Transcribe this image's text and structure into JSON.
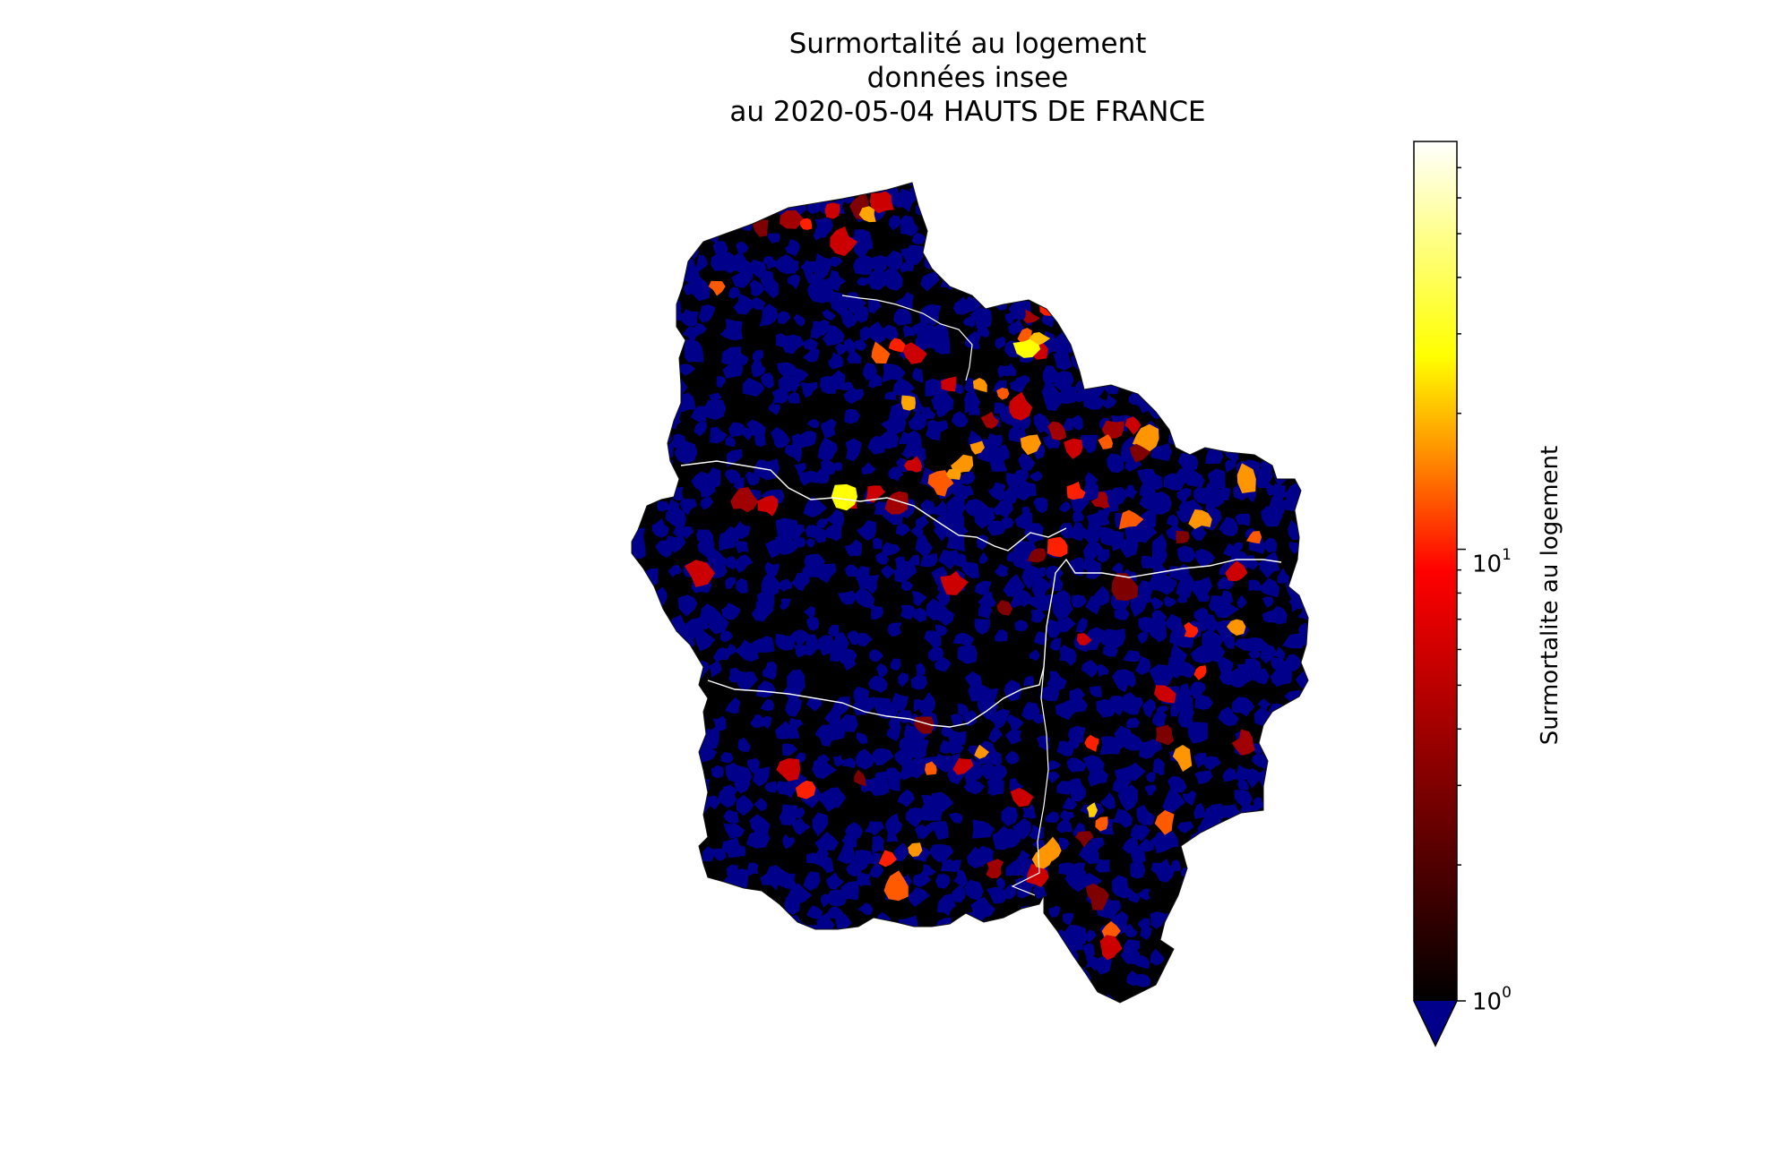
{
  "title": {
    "line1": "Surmortalité au logement",
    "line2": "données insee",
    "line3": "au 2020-05-04 HAUTS DE FRANCE"
  },
  "map": {
    "region": "HAUTS DE FRANCE",
    "date": "2020-05-04",
    "base_color": "#000000",
    "below_min_color": "#00008b",
    "boundary_color": "#ffffff"
  },
  "colorbar": {
    "label": "Surmortalite au logement",
    "scale": "log",
    "colormap": "afmhot",
    "vmin": 1,
    "extend": "min",
    "under_color": "#00008b",
    "ticks": [
      {
        "base": "10",
        "exp": "0",
        "value": 1
      },
      {
        "base": "10",
        "exp": "1",
        "value": 10
      }
    ]
  }
}
